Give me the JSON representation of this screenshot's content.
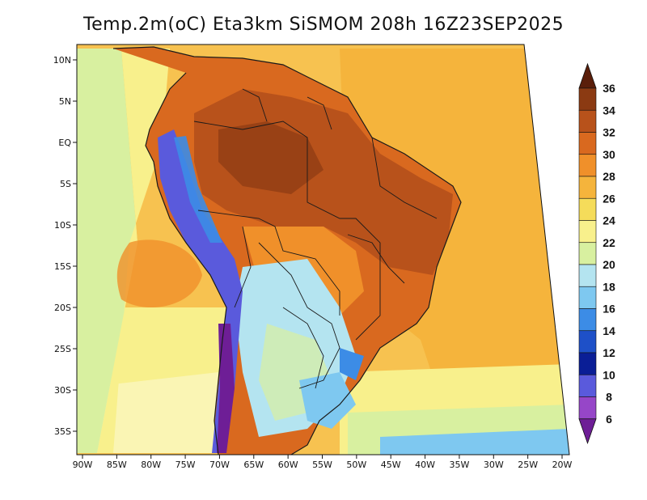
{
  "title": "Temp.2m(oC) Eta3km SiSMOM 208h 16Z23SEP2025",
  "map": {
    "lon_range": [
      -90,
      -20
    ],
    "lat_range": [
      -38,
      11
    ],
    "lon_ticks": [
      "90W",
      "85W",
      "80W",
      "75W",
      "70W",
      "65W",
      "60W",
      "55W",
      "50W",
      "45W",
      "40W",
      "35W",
      "30W",
      "25W",
      "20W"
    ],
    "lat_ticks": [
      "10N",
      "5N",
      "EQ",
      "5S",
      "10S",
      "15S",
      "20S",
      "25S",
      "30S",
      "35S"
    ]
  },
  "colorbar": {
    "labels": [
      "36",
      "34",
      "32",
      "30",
      "28",
      "26",
      "24",
      "22",
      "20",
      "18",
      "16",
      "14",
      "12",
      "10",
      "8",
      "6"
    ],
    "colors": [
      "#5a1e0a",
      "#8b3a12",
      "#b8521b",
      "#d9691f",
      "#f0902a",
      "#f5b43c",
      "#f5dc5a",
      "#f8f08c",
      "#d8f0a0",
      "#b4e4f0",
      "#7ec8f0",
      "#3c8ce6",
      "#1e50c8",
      "#0a1e96",
      "#5a5adc",
      "#9646c8",
      "#6e1e96"
    ]
  },
  "colors": {
    "ocean_north": "#f7c250",
    "ocean_south": "#ffe27a",
    "cold_ocean": "#b8e4f4",
    "hot_land": "#b8521b",
    "andes": "#5a5adc",
    "border": "#1a1a1a"
  }
}
